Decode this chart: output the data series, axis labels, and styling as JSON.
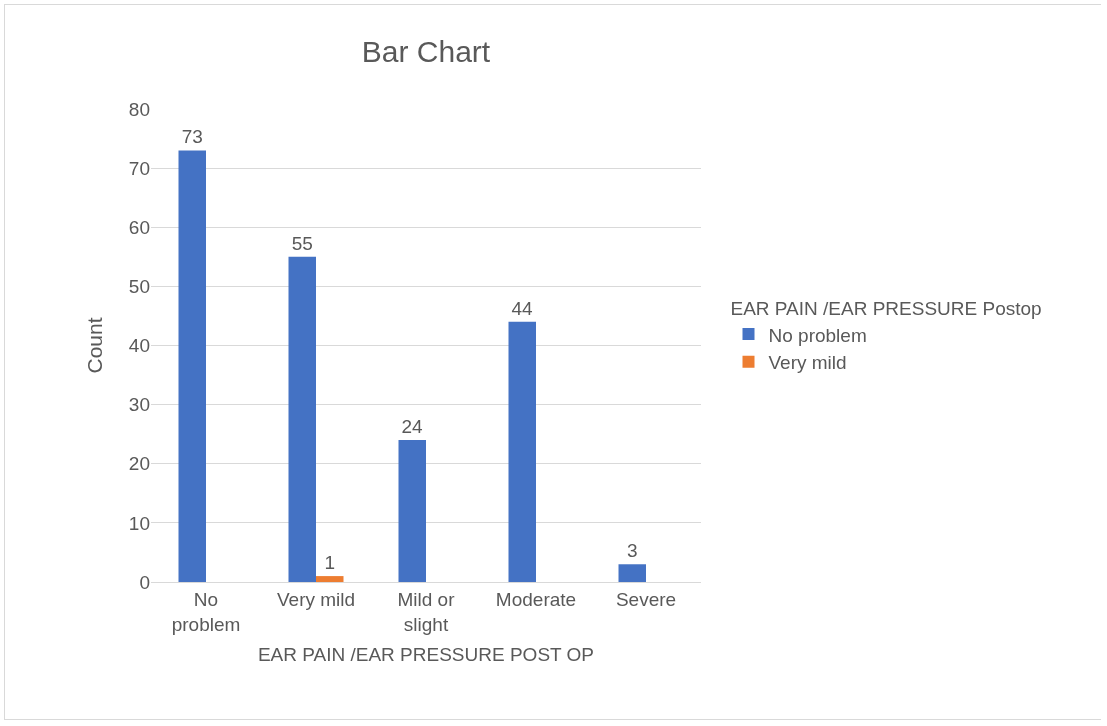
{
  "chart_data": {
    "type": "bar",
    "title": "Bar Chart",
    "xlabel": "EAR PAIN /EAR PRESSURE POST OP",
    "ylabel": "Count",
    "legend_title": "EAR PAIN /EAR PRESSURE Postop",
    "categories": [
      "No problem",
      "Very mild",
      "Mild or slight",
      "Moderate",
      "Severe"
    ],
    "series": [
      {
        "name": "No problem",
        "color": "#4472c4",
        "values": [
          73,
          55,
          24,
          44,
          3
        ]
      },
      {
        "name": "Very mild",
        "color": "#ed7d31",
        "values": [
          null,
          1,
          null,
          null,
          null
        ]
      }
    ],
    "ylim": [
      0,
      80
    ],
    "yticks": [
      0,
      10,
      20,
      30,
      40,
      50,
      60,
      70,
      80
    ],
    "grid": "y",
    "legend": "right",
    "data_labels": true
  }
}
